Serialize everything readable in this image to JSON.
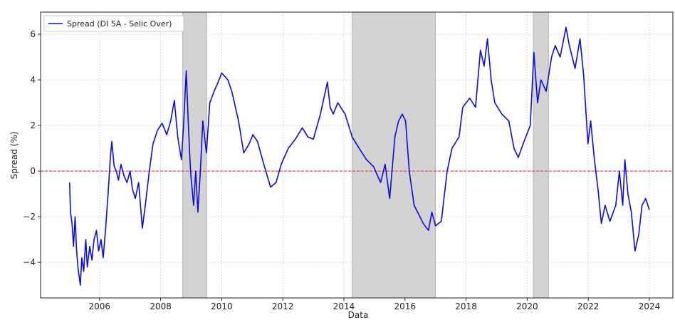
{
  "chart_data": {
    "type": "line",
    "x_label": "Data",
    "y_label": "Spread (%)",
    "xlim": [
      2004.07,
      2024.77
    ],
    "ylim": [
      -5.56,
      6.97
    ],
    "xticks": [
      2006,
      2008,
      2010,
      2012,
      2014,
      2016,
      2018,
      2020,
      2022,
      2024
    ],
    "yticks": [
      {
        "value": -4,
        "label": "−4"
      },
      {
        "value": -2,
        "label": "−2"
      },
      0,
      2,
      4,
      6
    ],
    "grid": true,
    "legend": "upper left",
    "reference_line": {
      "y": 0,
      "color": "#e8312b"
    },
    "shaded_periods": {
      "color": "#d3d3d3",
      "ranges": [
        [
          2008.72,
          2009.51
        ],
        [
          2014.27,
          2017.0
        ],
        [
          2020.2,
          2020.7
        ]
      ]
    },
    "x": [
      2005.02,
      2005.05,
      2005.1,
      2005.15,
      2005.2,
      2005.25,
      2005.3,
      2005.37,
      2005.42,
      2005.48,
      2005.55,
      2005.6,
      2005.68,
      2005.75,
      2005.82,
      2005.9,
      2005.97,
      2006.05,
      2006.12,
      2006.2,
      2006.28,
      2006.35,
      2006.4,
      2006.48,
      2006.55,
      2006.62,
      2006.7,
      2006.8,
      2006.9,
      2007.0,
      2007.08,
      2007.17,
      2007.28,
      2007.4,
      2007.5,
      2007.63,
      2007.75,
      2007.9,
      2008.05,
      2008.2,
      2008.33,
      2008.45,
      2008.56,
      2008.68,
      2008.75,
      2008.84,
      2008.91,
      2008.98,
      2009.08,
      2009.15,
      2009.22,
      2009.3,
      2009.38,
      2009.5,
      2009.61,
      2009.75,
      2009.85,
      2010.0,
      2010.2,
      2010.33,
      2010.55,
      2010.72,
      2010.9,
      2011.02,
      2011.17,
      2011.4,
      2011.6,
      2011.78,
      2011.95,
      2012.18,
      2012.41,
      2012.64,
      2012.82,
      2013.0,
      2013.23,
      2013.46,
      2013.55,
      2013.65,
      2013.8,
      2014.04,
      2014.27,
      2014.5,
      2014.74,
      2014.97,
      2015.2,
      2015.35,
      2015.5,
      2015.67,
      2015.79,
      2015.91,
      2016.02,
      2016.14,
      2016.3,
      2016.49,
      2016.6,
      2016.77,
      2016.88,
      2017.0,
      2017.19,
      2017.38,
      2017.54,
      2017.77,
      2017.89,
      2018.12,
      2018.31,
      2018.47,
      2018.59,
      2018.7,
      2018.82,
      2018.94,
      2019.17,
      2019.4,
      2019.57,
      2019.71,
      2019.87,
      2020.1,
      2020.22,
      2020.34,
      2020.45,
      2020.62,
      2020.8,
      2020.92,
      2021.08,
      2021.27,
      2021.38,
      2021.57,
      2021.73,
      2021.85,
      2021.99,
      2022.08,
      2022.2,
      2022.32,
      2022.43,
      2022.55,
      2022.71,
      2022.9,
      2023.02,
      2023.13,
      2023.2,
      2023.3,
      2023.41,
      2023.53,
      2023.65,
      2023.76,
      2023.88,
      2024.0
    ],
    "series": [
      {
        "name": "Spread (DI 5A - Selic Over)",
        "color": "#0a0ae6",
        "values": [
          -0.5,
          -1.8,
          -2.3,
          -3.3,
          -2.0,
          -3.5,
          -4.3,
          -5.0,
          -3.8,
          -4.4,
          -3.0,
          -4.2,
          -3.3,
          -3.9,
          -3.0,
          -2.6,
          -3.5,
          -3.0,
          -3.8,
          -2.5,
          -1.0,
          0.5,
          1.3,
          0.2,
          0.0,
          -0.4,
          0.3,
          -0.2,
          -0.5,
          0.0,
          -0.8,
          -1.2,
          -0.5,
          -2.5,
          -1.5,
          0.0,
          1.2,
          1.8,
          2.1,
          1.6,
          2.2,
          3.1,
          1.5,
          0.5,
          2.0,
          4.4,
          2.0,
          0.0,
          -1.5,
          0.0,
          -1.8,
          0.0,
          2.2,
          0.8,
          3.0,
          3.5,
          3.8,
          4.3,
          4.0,
          3.5,
          2.2,
          0.8,
          1.2,
          1.6,
          1.3,
          0.2,
          -0.7,
          -0.5,
          0.3,
          1.0,
          1.4,
          1.9,
          1.5,
          1.4,
          2.5,
          3.9,
          2.8,
          2.5,
          3.0,
          2.5,
          1.5,
          1.0,
          0.5,
          0.2,
          -0.5,
          0.3,
          -1.2,
          1.5,
          2.2,
          2.5,
          2.2,
          0.0,
          -1.5,
          -2.0,
          -2.3,
          -2.6,
          -1.8,
          -2.4,
          -2.2,
          0.0,
          1.0,
          1.5,
          2.8,
          3.2,
          2.8,
          5.3,
          4.6,
          5.8,
          4.0,
          3.0,
          2.5,
          2.2,
          1.0,
          0.6,
          1.2,
          2.0,
          5.2,
          3.0,
          4.0,
          3.5,
          5.0,
          5.5,
          5.0,
          6.3,
          5.5,
          4.5,
          5.8,
          4.2,
          1.2,
          2.2,
          0.5,
          -0.8,
          -2.3,
          -1.5,
          -2.2,
          -1.5,
          0.0,
          -1.5,
          0.5,
          -1.0,
          -1.8,
          -3.5,
          -2.8,
          -1.5,
          -1.2,
          -1.7
        ]
      }
    ]
  }
}
